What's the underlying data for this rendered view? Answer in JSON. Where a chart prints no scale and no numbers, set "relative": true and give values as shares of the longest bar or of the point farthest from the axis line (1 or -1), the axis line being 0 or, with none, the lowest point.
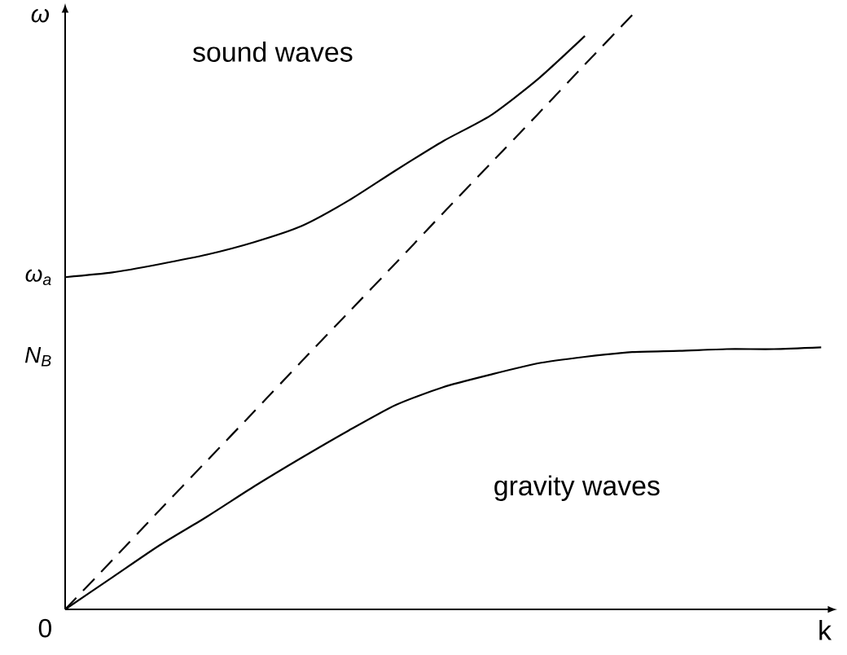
{
  "chart_data": {
    "type": "line",
    "relative": true,
    "xlabel": "k",
    "ylabel": "ω",
    "categories": [
      null,
      null,
      null,
      null,
      null,
      null,
      null,
      null,
      null,
      null,
      null,
      null,
      null,
      null,
      null,
      null,
      null
    ],
    "series": [
      {
        "color": "#000000",
        "line_style": "solid",
        "values": [
          0.559,
          0.567,
          0.581,
          0.597,
          0.618,
          0.645,
          0.688,
          0.739,
          0.788,
          0.831,
          0.892,
          0.965,
          null,
          null,
          null,
          null,
          null
        ]
      },
      {
        "color": "#000000",
        "line_style": "dashed",
        "values": [
          0,
          0.083,
          0.167,
          0.25,
          0.333,
          0.417,
          0.5,
          0.583,
          0.667,
          0.75,
          0.833,
          0.917,
          1,
          null,
          null,
          null,
          null
        ]
      },
      {
        "color": "#000000",
        "line_style": "solid",
        "values": [
          0,
          0.054,
          0.108,
          0.156,
          0.207,
          0.255,
          0.301,
          0.344,
          0.374,
          0.395,
          0.414,
          0.425,
          0.433,
          0.435,
          0.438,
          0.438,
          0.441
        ]
      }
    ],
    "annotations": [
      "sound waves",
      "gravity waves",
      "ω$_{a}$",
      "N$_{B}$",
      "0"
    ],
    "marker": "none"
  }
}
